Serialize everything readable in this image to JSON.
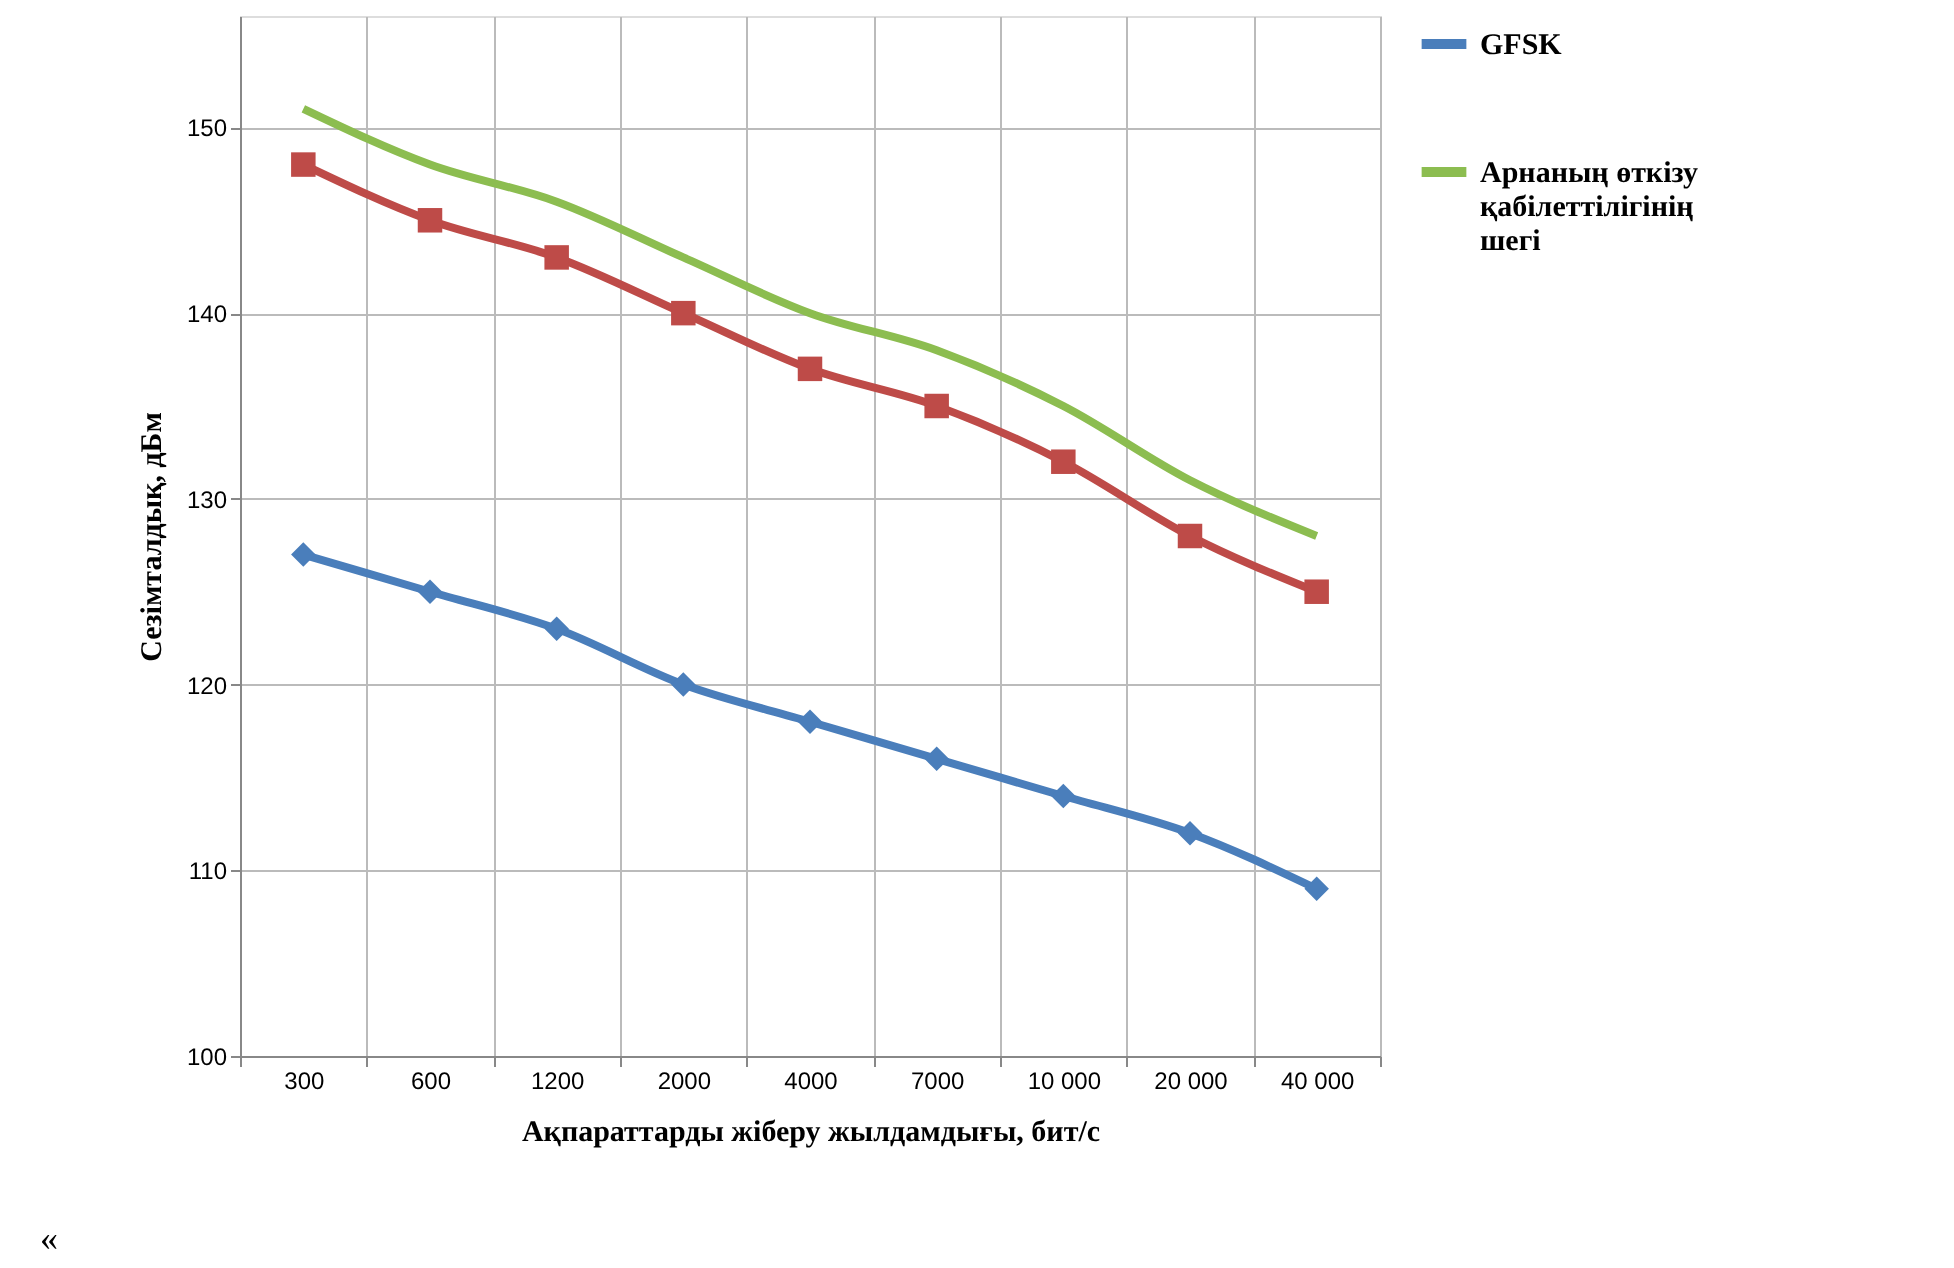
{
  "chart_data": {
    "type": "line",
    "xlabel": "Ақпараттарды жіберу жылдамдығы, бит/с",
    "ylabel": "Сезімталдық, дБм",
    "categories": [
      "300",
      "600",
      "1200",
      "2000",
      "4000",
      "7000",
      "10 000",
      "20 000",
      "40 000"
    ],
    "series": [
      {
        "name": "GFSK",
        "color": "#4a7ebb",
        "marker": "diamond",
        "values": [
          127,
          125,
          123,
          120,
          118,
          116,
          114,
          112,
          109
        ]
      },
      {
        "color": "#be4b48",
        "marker": "square",
        "values": [
          148,
          145,
          143,
          140,
          137,
          135,
          132,
          128,
          125
        ]
      },
      {
        "name": "Арнаның өткізу қабілеттілігінің шегі",
        "color": "#8cbd50",
        "marker": "none",
        "values": [
          151,
          148,
          146,
          143,
          140,
          138,
          135,
          131,
          128
        ]
      }
    ],
    "ylim": [
      100,
      156
    ],
    "yticks": [
      100,
      110,
      120,
      130,
      140,
      150
    ],
    "grid": true,
    "legend": "right",
    "line_style": "solid",
    "annotations": [
      "«"
    ]
  }
}
